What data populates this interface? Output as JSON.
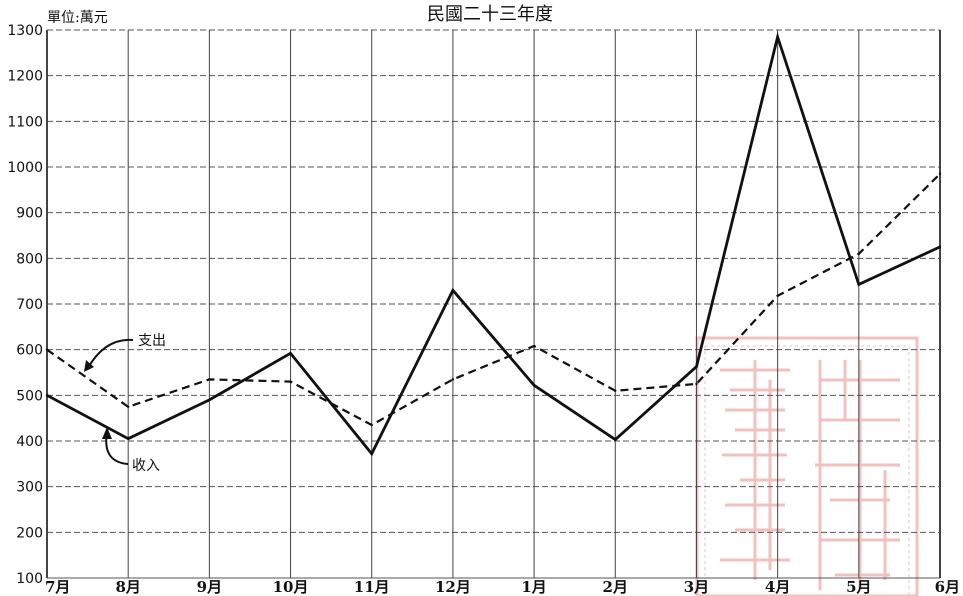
{
  "chart_data": {
    "type": "line",
    "title": "民國二十三年度",
    "unit_label": "單位:萬元",
    "categories": [
      "7月",
      "8月",
      "9月",
      "10月",
      "11月",
      "12月",
      "1月",
      "2月",
      "3月",
      "4月",
      "5月",
      "6月"
    ],
    "y_ticks": [
      "100",
      "200",
      "300",
      "400",
      "500",
      "600",
      "700",
      "800",
      "900",
      "1000",
      "1100",
      "1200",
      "1300"
    ],
    "ylim": [
      100,
      1300
    ],
    "grid": true,
    "series": [
      {
        "name": "收入",
        "style": "solid",
        "color": "#111111",
        "values": [
          500,
          405,
          490,
          592,
          372,
          730,
          522,
          403,
          563,
          1285,
          743,
          825
        ]
      },
      {
        "name": "支出",
        "style": "dashed",
        "color": "#111111",
        "values": [
          600,
          475,
          535,
          530,
          435,
          535,
          608,
          510,
          525,
          718,
          810,
          985
        ]
      }
    ]
  },
  "stamp": {
    "text": "日本書籍",
    "color": "#e0786f"
  }
}
